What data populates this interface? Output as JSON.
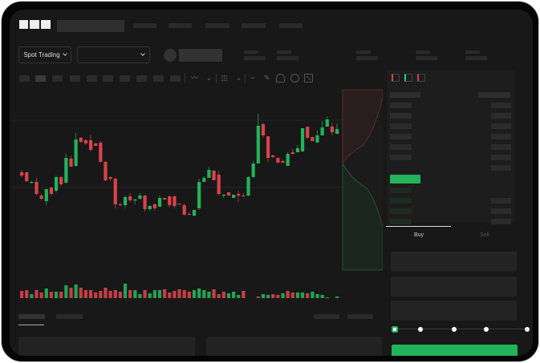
{
  "header": {
    "logo": "OKX",
    "spot_trading_label": "Spot Trading"
  },
  "trade_panel": {
    "tabs": [
      {
        "label": "Buy",
        "active": true
      },
      {
        "label": "Sell",
        "active": false
      }
    ],
    "slider_level": 0,
    "slider_stops": 5
  },
  "colors": {
    "up": "#23b35a",
    "down": "#d9434b",
    "background": "#181818"
  },
  "toolbar": {
    "icons": [
      "indicator-icon",
      "line-type-icon",
      "chart-type-icon",
      "wave-icon",
      "pencil-icon",
      "camera-icon",
      "settings-icon",
      "fullscreen-icon"
    ]
  },
  "orderbook": {
    "icons": [
      "both-sides-icon",
      "bids-icon",
      "asks-icon"
    ]
  },
  "chart_data": {
    "type": "candlestick",
    "ohlc": [
      [
        67,
        70,
        61,
        63
      ],
      [
        67,
        68,
        55,
        56
      ],
      [
        54,
        56,
        53,
        55
      ],
      [
        55,
        60,
        38,
        40
      ],
      [
        38,
        40,
        32,
        34
      ],
      [
        31,
        46,
        26,
        46
      ],
      [
        48,
        49,
        38,
        40
      ],
      [
        44,
        63,
        42,
        61
      ],
      [
        61,
        62,
        50,
        52
      ],
      [
        54,
        90,
        53,
        85
      ],
      [
        84,
        88,
        74,
        74
      ],
      [
        75,
        116,
        74,
        108
      ],
      [
        110,
        111,
        104,
        105
      ],
      [
        107,
        109,
        101,
        103
      ],
      [
        107,
        114,
        93,
        95
      ],
      [
        103,
        104,
        100,
        100
      ],
      [
        104,
        106,
        79,
        80
      ],
      [
        80,
        81,
        56,
        57
      ],
      [
        61,
        62,
        56,
        59
      ],
      [
        59,
        60,
        22,
        27
      ],
      [
        27,
        29,
        25,
        26
      ],
      [
        26,
        38,
        22,
        36
      ],
      [
        37,
        41,
        30,
        32
      ],
      [
        32,
        34,
        27,
        33
      ],
      [
        34,
        41,
        33,
        38
      ],
      [
        38,
        39,
        18,
        21
      ],
      [
        21,
        26,
        19,
        25
      ],
      [
        27,
        28,
        19,
        22
      ],
      [
        24,
        38,
        24,
        35
      ],
      [
        35,
        35,
        33,
        33
      ],
      [
        37,
        38,
        23,
        26
      ],
      [
        37,
        38,
        22,
        25
      ],
      [
        28,
        28,
        27,
        27
      ],
      [
        26,
        28,
        13,
        14
      ],
      [
        15,
        17,
        14,
        14
      ],
      [
        13,
        20,
        12,
        20
      ],
      [
        22,
        59,
        20,
        55
      ],
      [
        55,
        62,
        55,
        60
      ],
      [
        60,
        74,
        60,
        70
      ],
      [
        69,
        70,
        57,
        57
      ],
      [
        64,
        69,
        38,
        40
      ],
      [
        38,
        40,
        35,
        39
      ],
      [
        42,
        42,
        38,
        38
      ],
      [
        35,
        39,
        35,
        39
      ],
      [
        40,
        44,
        30,
        38
      ],
      [
        38,
        41,
        37,
        37
      ],
      [
        38,
        62,
        37,
        61
      ],
      [
        61,
        81,
        61,
        78
      ],
      [
        78,
        140,
        78,
        125
      ],
      [
        127,
        129,
        110,
        113
      ],
      [
        112,
        112,
        80,
        85
      ],
      [
        88,
        89,
        85,
        86
      ],
      [
        85,
        85,
        78,
        79
      ],
      [
        81,
        83,
        79,
        79
      ],
      [
        75,
        92,
        75,
        90
      ],
      [
        92,
        96,
        89,
        90
      ],
      [
        92,
        101,
        92,
        97
      ],
      [
        93,
        122,
        93,
        122
      ],
      [
        124,
        124,
        108,
        110
      ],
      [
        111,
        111,
        106,
        106
      ],
      [
        104,
        119,
        104,
        113
      ],
      [
        113,
        131,
        113,
        123
      ],
      [
        124,
        137,
        124,
        133
      ],
      [
        124,
        129,
        113,
        117
      ],
      [
        115,
        128,
        115,
        121
      ]
    ],
    "volume": [
      12,
      13,
      8,
      13,
      10,
      15,
      11,
      11,
      11,
      19,
      16,
      20,
      16,
      13,
      13,
      10,
      12,
      16,
      12,
      13,
      11,
      21,
      13,
      13,
      8,
      13,
      9,
      13,
      13,
      14,
      10,
      12,
      14,
      13,
      11,
      13,
      15,
      13,
      11,
      14,
      8,
      11,
      9,
      11,
      7,
      12,
      3,
      3,
      5,
      8,
      7,
      8,
      7,
      9,
      12,
      10,
      10,
      10,
      9,
      11,
      8,
      7,
      4,
      3,
      5
    ],
    "volume_up": [
      0,
      0,
      1,
      0,
      0,
      1,
      0,
      1,
      0,
      1,
      0,
      1,
      0,
      0,
      0,
      0,
      0,
      0,
      0,
      0,
      0,
      1,
      0,
      1,
      1,
      0,
      1,
      1,
      1,
      0,
      0,
      0,
      0,
      0,
      0,
      1,
      1,
      1,
      1,
      0,
      0,
      0,
      1,
      1,
      1,
      0,
      0,
      1,
      0,
      1,
      1,
      0,
      0,
      1,
      0,
      0,
      1,
      1,
      0,
      1,
      1,
      1,
      1,
      0,
      1
    ],
    "grid": true,
    "depth": {
      "type": "area",
      "bids_color": "#23b35a",
      "asks_color": "#d9434b"
    }
  }
}
